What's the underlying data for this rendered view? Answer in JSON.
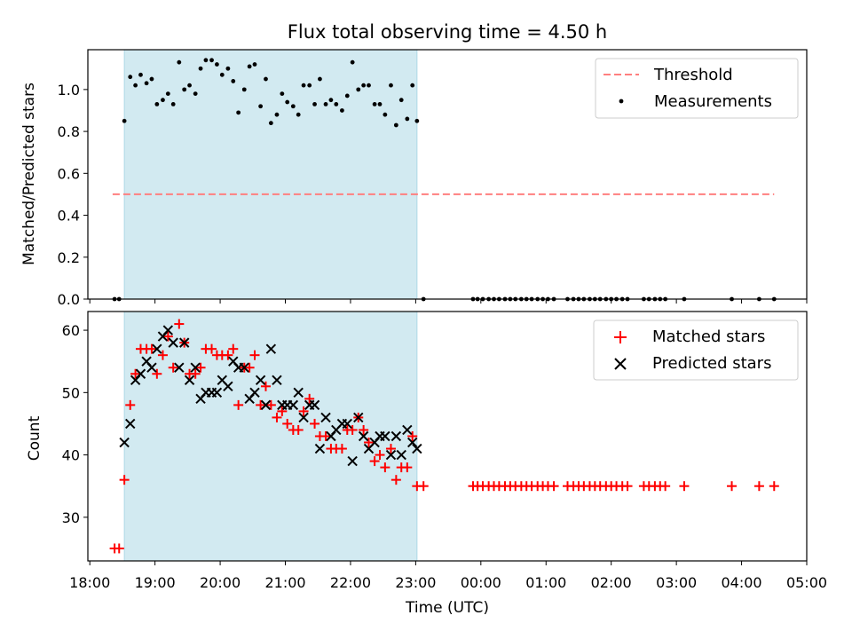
{
  "chart_data": {
    "type": "scatter",
    "title": "Flux total observing time = 4.50 h",
    "xlabel": "Time (UTC)",
    "x_ticks": [
      "18:00",
      "19:00",
      "20:00",
      "21:00",
      "22:00",
      "23:00",
      "00:00",
      "01:00",
      "02:00",
      "03:00",
      "04:00",
      "05:00"
    ],
    "xlim_hours": [
      17.97,
      29.0
    ],
    "shaded_interval_hours": [
      18.53,
      23.02
    ],
    "colors": {
      "shade": "#add8e6",
      "threshold": "#ff7f7f",
      "matched": "#ff0000",
      "predicted": "#000000",
      "measurement": "#000000"
    },
    "panels": {
      "ratio": {
        "ylabel": "Matched/Predicted stars",
        "ylim": [
          0,
          1.19
        ],
        "y_ticks": [
          "0.0",
          "0.2",
          "0.4",
          "0.6",
          "0.8",
          "1.0"
        ],
        "legend": [
          "Threshold",
          "Measurements"
        ],
        "threshold": {
          "value": 0.5,
          "x": [
            18.35,
            28.5
          ]
        },
        "measurements": [
          [
            18.38,
            0
          ],
          [
            18.45,
            0
          ],
          [
            18.53,
            0.85
          ],
          [
            18.62,
            1.06
          ],
          [
            18.7,
            1.02
          ],
          [
            18.78,
            1.07
          ],
          [
            18.87,
            1.03
          ],
          [
            18.95,
            1.05
          ],
          [
            19.03,
            0.93
          ],
          [
            19.12,
            0.95
          ],
          [
            19.2,
            0.98
          ],
          [
            19.28,
            0.93
          ],
          [
            19.37,
            1.13
          ],
          [
            19.45,
            1.0
          ],
          [
            19.53,
            1.02
          ],
          [
            19.62,
            0.98
          ],
          [
            19.7,
            1.1
          ],
          [
            19.78,
            1.14
          ],
          [
            19.87,
            1.14
          ],
          [
            19.95,
            1.12
          ],
          [
            20.03,
            1.07
          ],
          [
            20.12,
            1.1
          ],
          [
            20.2,
            1.04
          ],
          [
            20.28,
            0.89
          ],
          [
            20.37,
            1.0
          ],
          [
            20.45,
            1.11
          ],
          [
            20.53,
            1.12
          ],
          [
            20.62,
            0.92
          ],
          [
            20.7,
            1.05
          ],
          [
            20.78,
            0.84
          ],
          [
            20.87,
            0.88
          ],
          [
            20.95,
            0.98
          ],
          [
            21.03,
            0.94
          ],
          [
            21.12,
            0.92
          ],
          [
            21.2,
            0.88
          ],
          [
            21.28,
            1.02
          ],
          [
            21.37,
            1.02
          ],
          [
            21.45,
            0.93
          ],
          [
            21.53,
            1.05
          ],
          [
            21.62,
            0.93
          ],
          [
            21.7,
            0.95
          ],
          [
            21.78,
            0.93
          ],
          [
            21.87,
            0.9
          ],
          [
            21.95,
            0.97
          ],
          [
            22.03,
            1.13
          ],
          [
            22.12,
            1.0
          ],
          [
            22.2,
            1.02
          ],
          [
            22.28,
            1.02
          ],
          [
            22.37,
            0.93
          ],
          [
            22.45,
            0.93
          ],
          [
            22.53,
            0.88
          ],
          [
            22.62,
            1.02
          ],
          [
            22.7,
            0.83
          ],
          [
            22.78,
            0.95
          ],
          [
            22.87,
            0.86
          ],
          [
            22.95,
            1.02
          ],
          [
            23.02,
            0.85
          ],
          [
            23.12,
            0
          ],
          [
            23.88,
            0
          ],
          [
            23.95,
            0
          ],
          [
            24.03,
            0
          ],
          [
            24.12,
            0
          ],
          [
            24.2,
            0
          ],
          [
            24.28,
            0
          ],
          [
            24.37,
            0
          ],
          [
            24.45,
            0
          ],
          [
            24.53,
            0
          ],
          [
            24.62,
            0
          ],
          [
            24.7,
            0
          ],
          [
            24.78,
            0
          ],
          [
            24.87,
            0
          ],
          [
            24.95,
            0
          ],
          [
            25.03,
            0
          ],
          [
            25.12,
            0
          ],
          [
            25.33,
            0
          ],
          [
            25.42,
            0
          ],
          [
            25.5,
            0
          ],
          [
            25.58,
            0
          ],
          [
            25.67,
            0
          ],
          [
            25.75,
            0
          ],
          [
            25.83,
            0
          ],
          [
            25.92,
            0
          ],
          [
            26.0,
            0
          ],
          [
            26.08,
            0
          ],
          [
            26.17,
            0
          ],
          [
            26.25,
            0
          ],
          [
            26.5,
            0
          ],
          [
            26.58,
            0
          ],
          [
            26.67,
            0
          ],
          [
            26.75,
            0
          ],
          [
            26.83,
            0
          ],
          [
            27.12,
            0
          ],
          [
            27.85,
            0
          ],
          [
            28.27,
            0
          ],
          [
            28.5,
            0
          ]
        ]
      },
      "count": {
        "ylabel": "Count",
        "ylim": [
          23,
          63
        ],
        "y_ticks": [
          "30",
          "40",
          "50",
          "60"
        ],
        "legend": [
          "Matched stars",
          "Predicted stars"
        ],
        "matched": [
          [
            18.38,
            25
          ],
          [
            18.45,
            25
          ],
          [
            18.53,
            36
          ],
          [
            18.62,
            48
          ],
          [
            18.7,
            53
          ],
          [
            18.78,
            57
          ],
          [
            18.87,
            57
          ],
          [
            18.95,
            57
          ],
          [
            19.03,
            53
          ],
          [
            19.12,
            56
          ],
          [
            19.2,
            59
          ],
          [
            19.28,
            54
          ],
          [
            19.37,
            61
          ],
          [
            19.45,
            58
          ],
          [
            19.53,
            53
          ],
          [
            19.62,
            53
          ],
          [
            19.7,
            54
          ],
          [
            19.78,
            57
          ],
          [
            19.87,
            57
          ],
          [
            19.95,
            56
          ],
          [
            20.03,
            56
          ],
          [
            20.12,
            56
          ],
          [
            20.2,
            57
          ],
          [
            20.28,
            48
          ],
          [
            20.37,
            54
          ],
          [
            20.45,
            54
          ],
          [
            20.53,
            56
          ],
          [
            20.62,
            48
          ],
          [
            20.7,
            51
          ],
          [
            20.78,
            48
          ],
          [
            20.87,
            46
          ],
          [
            20.95,
            47
          ],
          [
            21.03,
            45
          ],
          [
            21.12,
            44
          ],
          [
            21.2,
            44
          ],
          [
            21.28,
            47
          ],
          [
            21.37,
            49
          ],
          [
            21.45,
            45
          ],
          [
            21.53,
            43
          ],
          [
            21.62,
            43
          ],
          [
            21.7,
            41
          ],
          [
            21.78,
            41
          ],
          [
            21.87,
            41
          ],
          [
            21.95,
            44
          ],
          [
            22.03,
            44
          ],
          [
            22.12,
            46
          ],
          [
            22.2,
            44
          ],
          [
            22.28,
            42
          ],
          [
            22.37,
            39
          ],
          [
            22.45,
            40
          ],
          [
            22.53,
            38
          ],
          [
            22.62,
            41
          ],
          [
            22.7,
            36
          ],
          [
            22.78,
            38
          ],
          [
            22.87,
            38
          ],
          [
            22.95,
            43
          ],
          [
            23.02,
            35
          ],
          [
            23.12,
            35
          ],
          [
            23.88,
            35
          ],
          [
            23.95,
            35
          ],
          [
            24.03,
            35
          ],
          [
            24.12,
            35
          ],
          [
            24.2,
            35
          ],
          [
            24.28,
            35
          ],
          [
            24.37,
            35
          ],
          [
            24.45,
            35
          ],
          [
            24.53,
            35
          ],
          [
            24.62,
            35
          ],
          [
            24.7,
            35
          ],
          [
            24.78,
            35
          ],
          [
            24.87,
            35
          ],
          [
            24.95,
            35
          ],
          [
            25.03,
            35
          ],
          [
            25.12,
            35
          ],
          [
            25.33,
            35
          ],
          [
            25.42,
            35
          ],
          [
            25.5,
            35
          ],
          [
            25.58,
            35
          ],
          [
            25.67,
            35
          ],
          [
            25.75,
            35
          ],
          [
            25.83,
            35
          ],
          [
            25.92,
            35
          ],
          [
            26.0,
            35
          ],
          [
            26.08,
            35
          ],
          [
            26.17,
            35
          ],
          [
            26.25,
            35
          ],
          [
            26.5,
            35
          ],
          [
            26.58,
            35
          ],
          [
            26.67,
            35
          ],
          [
            26.75,
            35
          ],
          [
            26.83,
            35
          ],
          [
            27.12,
            35
          ],
          [
            27.85,
            35
          ],
          [
            28.27,
            35
          ],
          [
            28.5,
            35
          ]
        ],
        "predicted": [
          [
            18.53,
            42
          ],
          [
            18.62,
            45
          ],
          [
            18.7,
            52
          ],
          [
            18.78,
            53
          ],
          [
            18.87,
            55
          ],
          [
            18.95,
            54
          ],
          [
            19.03,
            57
          ],
          [
            19.12,
            59
          ],
          [
            19.2,
            60
          ],
          [
            19.28,
            58
          ],
          [
            19.37,
            54
          ],
          [
            19.45,
            58
          ],
          [
            19.53,
            52
          ],
          [
            19.62,
            54
          ],
          [
            19.7,
            49
          ],
          [
            19.78,
            50
          ],
          [
            19.87,
            50
          ],
          [
            19.95,
            50
          ],
          [
            20.03,
            52
          ],
          [
            20.12,
            51
          ],
          [
            20.2,
            55
          ],
          [
            20.28,
            54
          ],
          [
            20.37,
            54
          ],
          [
            20.45,
            49
          ],
          [
            20.53,
            50
          ],
          [
            20.62,
            52
          ],
          [
            20.7,
            48
          ],
          [
            20.78,
            57
          ],
          [
            20.87,
            52
          ],
          [
            20.95,
            48
          ],
          [
            21.03,
            48
          ],
          [
            21.12,
            48
          ],
          [
            21.2,
            50
          ],
          [
            21.28,
            46
          ],
          [
            21.37,
            48
          ],
          [
            21.45,
            48
          ],
          [
            21.53,
            41
          ],
          [
            21.62,
            46
          ],
          [
            21.7,
            43
          ],
          [
            21.78,
            44
          ],
          [
            21.87,
            45
          ],
          [
            21.95,
            45
          ],
          [
            22.03,
            39
          ],
          [
            22.12,
            46
          ],
          [
            22.2,
            43
          ],
          [
            22.28,
            41
          ],
          [
            22.37,
            42
          ],
          [
            22.45,
            43
          ],
          [
            22.53,
            43
          ],
          [
            22.62,
            40
          ],
          [
            22.7,
            43
          ],
          [
            22.78,
            40
          ],
          [
            22.87,
            44
          ],
          [
            22.95,
            42
          ],
          [
            23.02,
            41
          ]
        ]
      }
    }
  }
}
